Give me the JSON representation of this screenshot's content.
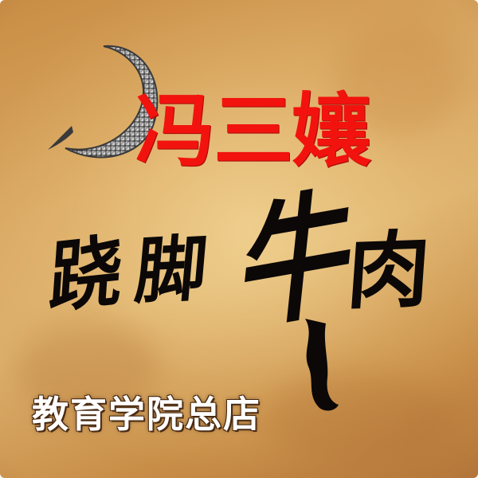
{
  "poster": {
    "brand_name": "冯三孃",
    "dish_chars": [
      "跷",
      "脚",
      "牛",
      "肉"
    ],
    "branch_name": "教育学院总店"
  },
  "colors": {
    "background": "#d7a862",
    "brand_red": "#f2130f",
    "ink_black": "#0c0807",
    "branch_white": "#ffffff",
    "ornament_silver": "#b9b9b9"
  },
  "icons": {
    "ornament": "crescent-moon-icon"
  }
}
